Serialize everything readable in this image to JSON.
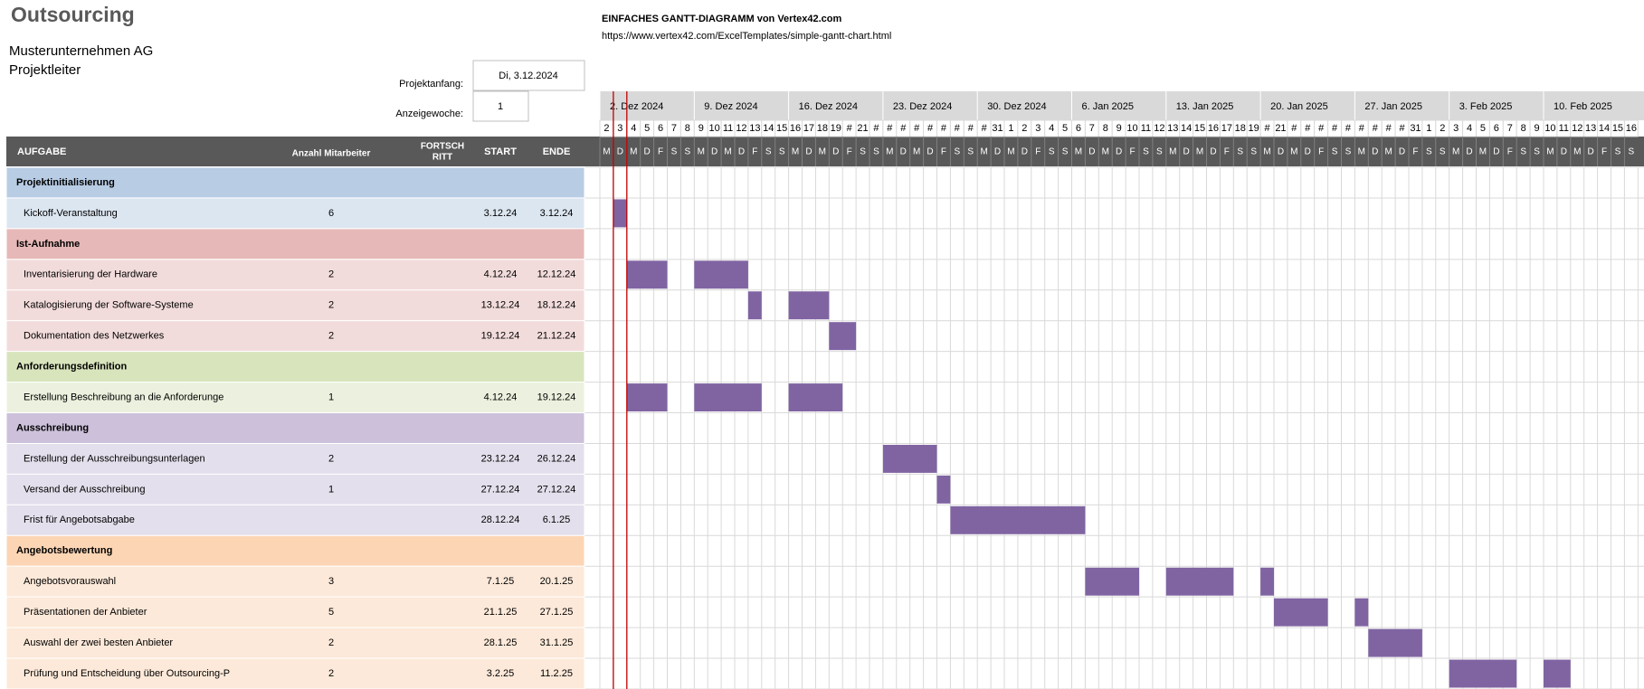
{
  "header": {
    "title": "Outsourcing",
    "company": "Musterunternehmen AG",
    "manager": "Projektleiter",
    "template_title": "EINFACHES GANTT-DIAGRAMM von Vertex42.com",
    "template_url": "https://www.vertex42.com/ExcelTemplates/simple-gantt-chart.html",
    "project_start_label": "Projektanfang:",
    "project_start": "Di, 3.12.2024",
    "display_week_label": "Anzeigewoche:",
    "display_week": 1
  },
  "table": {
    "columns": [
      "AUFGABE",
      "Anzahl Mitarbeiter",
      [
        "FORTSCH",
        "RITT"
      ],
      "START",
      "ENDE"
    ],
    "bar_color": "#8064a2",
    "rows": [
      {
        "kind": "phase",
        "task": "Projektinitialisierung",
        "color": "#b8cce4"
      },
      {
        "kind": "task",
        "task": "Kickoff-Veranstaltung",
        "staff": 6,
        "start": "3.12.24",
        "end": "3.12.24",
        "color": "#dce6f1"
      },
      {
        "kind": "phase",
        "task": "Ist-Aufnahme",
        "color": "#e6b8b7"
      },
      {
        "kind": "task",
        "task": "Inventarisierung der Hardware",
        "staff": 2,
        "start": "4.12.24",
        "end": "12.12.24",
        "color": "#f2dcdb"
      },
      {
        "kind": "task",
        "task": "Katalogisierung der Software-Systeme",
        "staff": 2,
        "start": "13.12.24",
        "end": "18.12.24",
        "color": "#f2dcdb"
      },
      {
        "kind": "task",
        "task": "Dokumentation des Netzwerkes",
        "staff": 2,
        "start": "19.12.24",
        "end": "21.12.24",
        "color": "#f2dcdb"
      },
      {
        "kind": "phase",
        "task": "Anforderungsdefinition",
        "color": "#d8e4bc"
      },
      {
        "kind": "task",
        "task": "Erstellung Beschreibung an die Anforderunge",
        "staff": 1,
        "start": "4.12.24",
        "end": "19.12.24",
        "color": "#ebf1de"
      },
      {
        "kind": "phase",
        "task": "Ausschreibung",
        "color": "#ccc0da"
      },
      {
        "kind": "task",
        "task": "Erstellung der Ausschreibungsunterlagen",
        "staff": 2,
        "start": "23.12.24",
        "end": "26.12.24",
        "color": "#e4dfec"
      },
      {
        "kind": "task",
        "task": "Versand der Ausschreibung",
        "staff": 1,
        "start": "27.12.24",
        "end": "27.12.24",
        "color": "#e4dfec"
      },
      {
        "kind": "task",
        "task": "Frist für Angebotsabgabe",
        "start": "28.12.24",
        "end": "6.1.25",
        "color": "#e4dfec"
      },
      {
        "kind": "phase",
        "task": "Angebotsbewertung",
        "color": "#fcd5b4"
      },
      {
        "kind": "task",
        "task": "Angebotsvorauswahl",
        "staff": 3,
        "start": "7.1.25",
        "end": "20.1.25",
        "color": "#fde9d9"
      },
      {
        "kind": "task",
        "task": "Präsentationen der Anbieter",
        "staff": 5,
        "start": "21.1.25",
        "end": "27.1.25",
        "color": "#fde9d9"
      },
      {
        "kind": "task",
        "task": "Auswahl der zwei besten Anbieter",
        "staff": 2,
        "start": "28.1.25",
        "end": "31.1.25",
        "color": "#fde9d9"
      },
      {
        "kind": "task",
        "task": "Prüfung und Entscheidung über Outsourcing-P",
        "staff": 2,
        "start": "3.2.25",
        "end": "11.2.25",
        "color": "#fde9d9"
      }
    ]
  },
  "timeline": {
    "weekdays": [
      "M",
      "D",
      "M",
      "D",
      "F",
      "S",
      "S"
    ],
    "weeks": [
      {
        "label": "2. Dez 2024",
        "days": [
          2,
          3,
          4,
          5,
          6,
          7,
          8
        ]
      },
      {
        "label": "9. Dez 2024",
        "days": [
          9,
          10,
          11,
          12,
          13,
          14,
          15
        ]
      },
      {
        "label": "16. Dez 2024",
        "days": [
          16,
          17,
          18,
          19,
          "#",
          21,
          "#"
        ]
      },
      {
        "label": "23. Dez 2024",
        "days": [
          "#",
          "#",
          "#",
          "#",
          "#",
          "#",
          "#"
        ]
      },
      {
        "label": "30. Dez 2024",
        "days": [
          "#",
          31,
          1,
          2,
          3,
          4,
          5
        ]
      },
      {
        "label": "6. Jan 2025",
        "days": [
          6,
          7,
          8,
          9,
          10,
          11,
          12
        ]
      },
      {
        "label": "13. Jan 2025",
        "days": [
          13,
          14,
          15,
          16,
          17,
          18,
          19
        ]
      },
      {
        "label": "20. Jan 2025",
        "days": [
          "#",
          21,
          "#",
          "#",
          "#",
          "#",
          "#"
        ]
      },
      {
        "label": "27. Jan 2025",
        "days": [
          "#",
          "#",
          "#",
          "#",
          31,
          1,
          2
        ]
      },
      {
        "label": "3. Feb 2025",
        "days": [
          3,
          4,
          5,
          6,
          7,
          8,
          9
        ]
      },
      {
        "label": "10. Feb 2025",
        "days": [
          10,
          11,
          12,
          13,
          14,
          15,
          16
        ]
      }
    ]
  }
}
